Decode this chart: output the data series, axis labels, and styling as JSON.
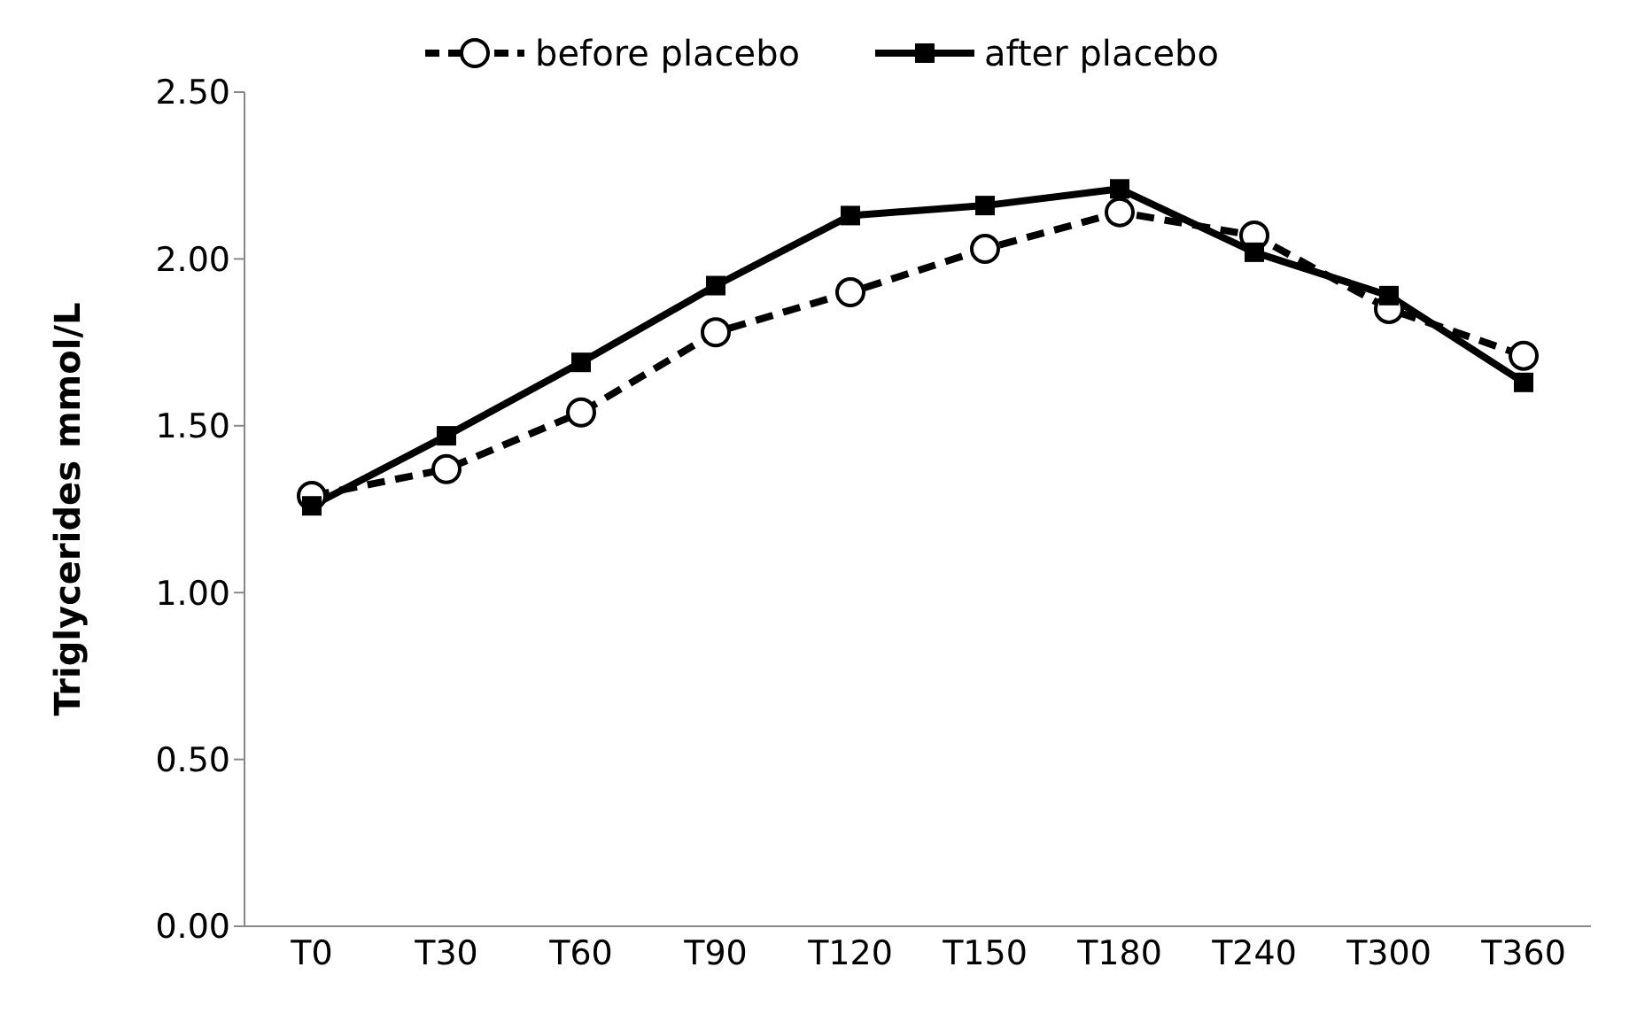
{
  "chart_data": {
    "type": "line",
    "ylabel": "Triglycerides mmol/L",
    "categories": [
      "T0",
      "T30",
      "T60",
      "T90",
      "T120",
      "T150",
      "T180",
      "T240",
      "T300",
      "T360"
    ],
    "series": [
      {
        "name": "before placebo",
        "color": "#000000",
        "marker": "circle",
        "line_style": "dashed",
        "values": [
          1.29,
          1.37,
          1.54,
          1.78,
          1.9,
          2.03,
          2.14,
          2.07,
          1.85,
          1.71
        ]
      },
      {
        "name": "after placebo",
        "color": "#000000",
        "marker": "square",
        "line_style": "solid",
        "values": [
          1.26,
          1.47,
          1.69,
          1.92,
          2.13,
          2.16,
          2.21,
          2.02,
          1.89,
          1.63
        ]
      }
    ],
    "ylim": [
      0,
      2.5
    ],
    "yticks": [
      {
        "value": 0,
        "label": "0.00"
      },
      {
        "value": 0.5,
        "label": "0.50"
      },
      {
        "value": 1,
        "label": "1.00"
      },
      {
        "value": 1.5,
        "label": "1.50"
      },
      {
        "value": 2,
        "label": "2.00"
      },
      {
        "value": 2.5,
        "label": "2.50"
      }
    ],
    "grid": false,
    "legend": "top"
  }
}
